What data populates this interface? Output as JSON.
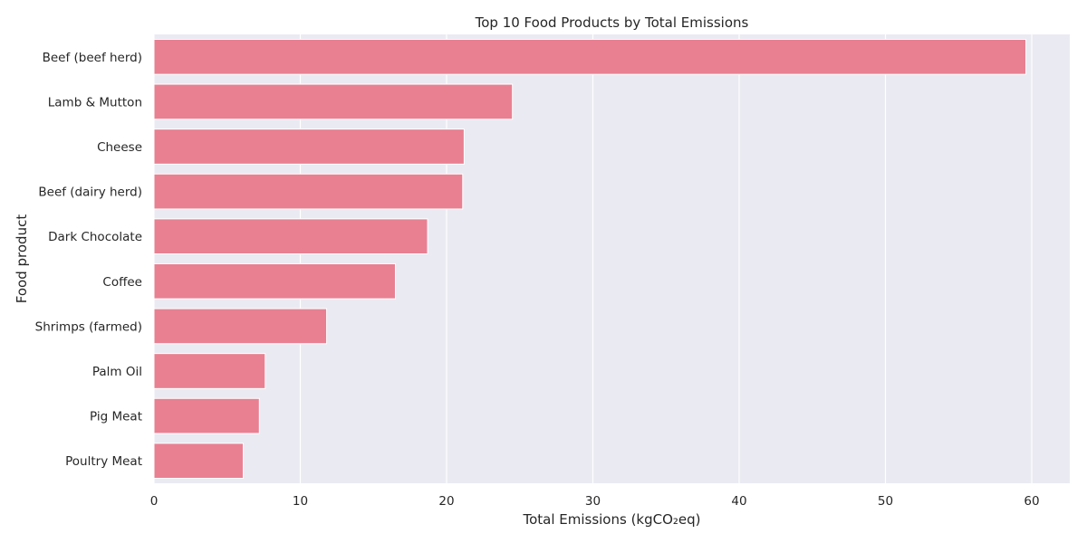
{
  "chart_data": {
    "type": "bar",
    "orientation": "horizontal",
    "title": "Top 10 Food Products by Total Emissions",
    "xlabel": "Total Emissions (kgCO₂eq)",
    "ylabel": "Food product",
    "categories": [
      "Beef (beef herd)",
      "Lamb & Mutton",
      "Cheese",
      "Beef (dairy herd)",
      "Dark Chocolate",
      "Coffee",
      "Shrimps (farmed)",
      "Palm Oil",
      "Pig Meat",
      "Poultry Meat"
    ],
    "values": [
      59.6,
      24.5,
      21.2,
      21.1,
      18.7,
      16.5,
      11.8,
      7.6,
      7.2,
      6.1
    ],
    "xlim": [
      0,
      62.6
    ],
    "xticks": [
      0,
      10,
      20,
      30,
      40,
      50,
      60
    ],
    "grid": true,
    "colors": {
      "bar": "#e88092",
      "plot_background": "#eaeaf2",
      "grid": "#ffffff",
      "text": "#262626"
    }
  }
}
